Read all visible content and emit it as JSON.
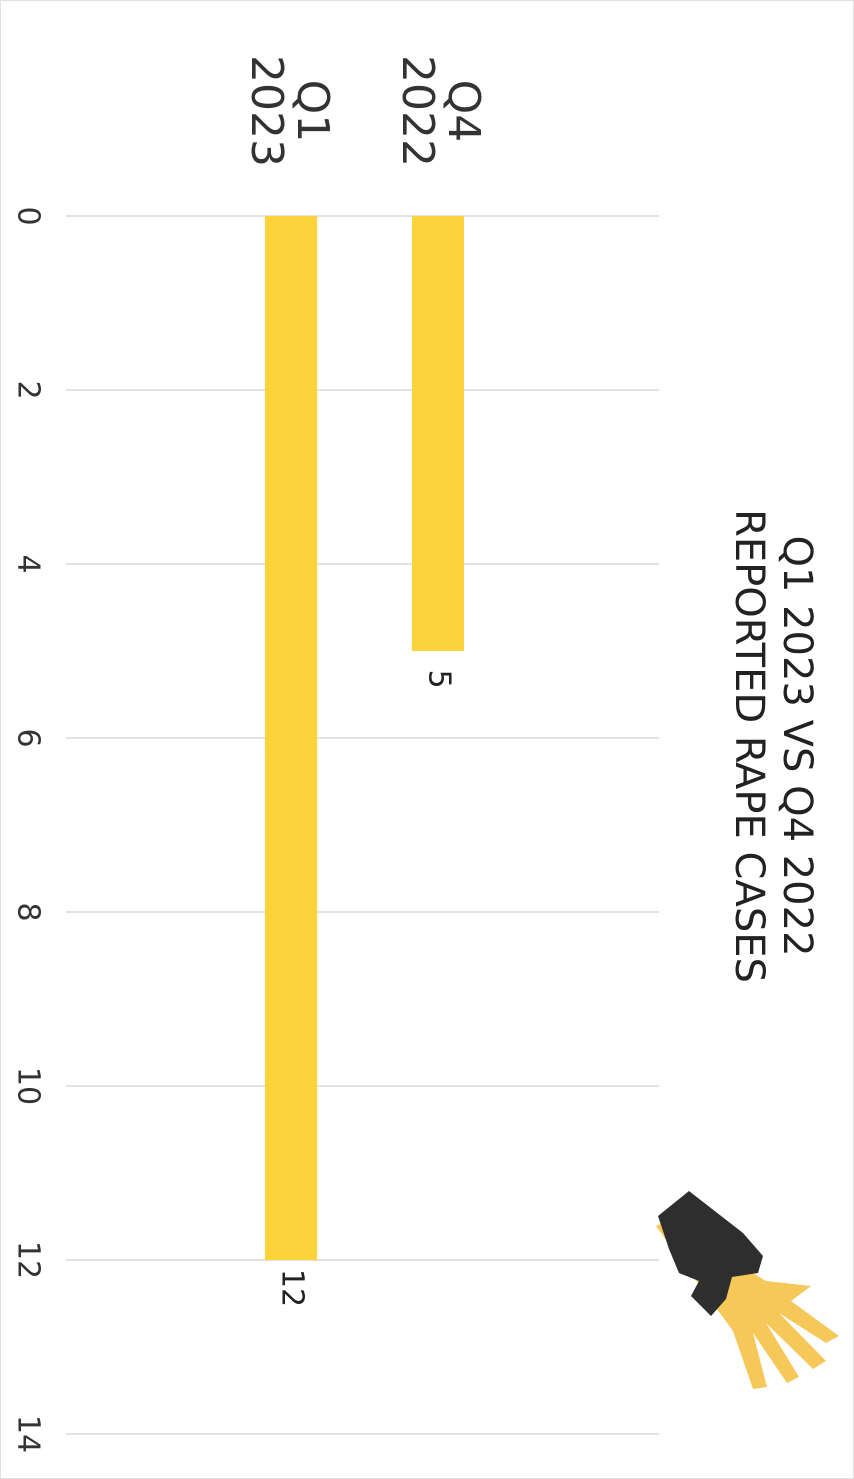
{
  "chart_data": {
    "type": "bar",
    "orientation": "horizontal",
    "rotation_deg": 90,
    "title_lines": [
      "Q1 2023 VS Q4 2022",
      "REPORTED RAPE CASES"
    ],
    "categories": [
      {
        "lines": [
          "Q4",
          "2022"
        ]
      },
      {
        "lines": [
          "Q1",
          "2023"
        ]
      }
    ],
    "values": [
      5,
      12
    ],
    "data_labels": [
      "5",
      "12"
    ],
    "ticks": [
      "0",
      "2",
      "4",
      "6",
      "8",
      "10",
      "12",
      "14"
    ],
    "xlim": [
      0,
      14
    ],
    "grid": true,
    "bar_color": "#FDD33B",
    "grid_color": "#d9d9d9",
    "logo": "hand-grab-icon"
  }
}
